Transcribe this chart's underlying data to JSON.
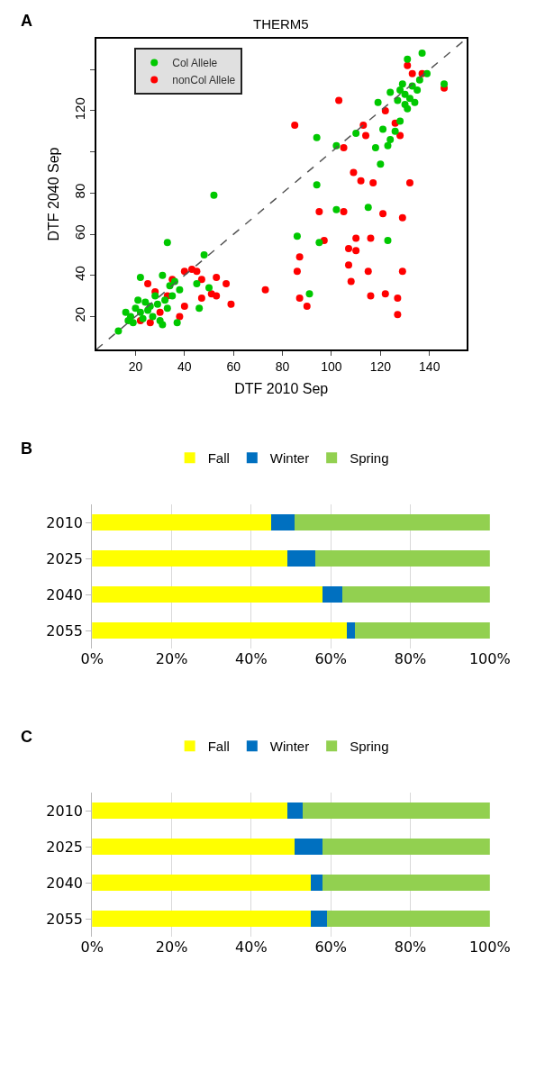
{
  "chart_data": [
    {
      "type": "scatter",
      "title": "THERM5",
      "xlabel": "DTF 2010 Sep",
      "ylabel": "DTF 2040 Sep",
      "annotations": [
        "A"
      ],
      "xlim": [
        4,
        155
      ],
      "ylim": [
        4,
        155
      ],
      "xticks": [
        20,
        40,
        60,
        80,
        100,
        120,
        140
      ],
      "yticks": [
        20,
        40,
        60,
        80,
        {
          "value": 100,
          "label": null
        },
        120,
        {
          "value": 140,
          "label": null
        }
      ],
      "grid": false,
      "legend": "top left",
      "marker": "circle",
      "series": [
        {
          "name": "nonCol Allele",
          "color": "#ff0000",
          "x": [
            85,
            40,
            43,
            45,
            53,
            57,
            59,
            53,
            51,
            40,
            25,
            47,
            47,
            73,
            86,
            87,
            87,
            90,
            103,
            113,
            114,
            105,
            109,
            112,
            117,
            132,
            95,
            105,
            121,
            129,
            97,
            110,
            116,
            107,
            110,
            107,
            115,
            129,
            108,
            116,
            122,
            127,
            127,
            131,
            133,
            137,
            null,
            122,
            126,
            null,
            128,
            146,
            null,
            22,
            28,
            30,
            35,
            38,
            33,
            26
          ],
          "values": [
            113,
            42,
            43,
            42,
            39,
            36,
            26,
            30,
            31,
            25,
            36,
            29,
            38,
            33,
            42,
            49,
            29,
            25,
            125,
            113,
            108,
            102,
            90,
            86,
            85,
            85,
            71,
            71,
            70,
            68,
            57,
            58,
            58,
            53,
            52,
            45,
            42,
            42,
            37,
            30,
            31,
            29,
            21,
            142,
            138,
            138,
            null,
            120,
            114,
            null,
            108,
            131,
            null,
            18,
            32,
            22,
            38,
            20,
            30,
            17
          ]
        },
        {
          "name": "Col Allele",
          "color": "#00c800",
          "x": [
            52,
            33,
            48,
            22,
            31,
            46,
            37,
            50,
            45,
            13,
            18,
            20,
            22,
            24,
            26,
            28,
            30,
            32,
            34,
            19,
            21,
            23,
            25,
            27,
            29,
            31,
            33,
            35,
            17,
            16,
            36,
            38,
            94,
            110,
            102,
            118,
            120,
            94,
            102,
            115,
            86,
            95,
            123,
            91,
            119,
            124,
            131,
            137,
            146,
            121,
            123,
            139,
            128,
            130,
            132,
            133,
            135,
            127,
            130,
            134,
            136,
            129,
            131,
            126,
            124,
            128
          ],
          "values": [
            79,
            56,
            50,
            39,
            40,
            24,
            17,
            34,
            36,
            13,
            20,
            24,
            22,
            27,
            25,
            30,
            18,
            28,
            35,
            17,
            28,
            19,
            23,
            20,
            26,
            16,
            24,
            30,
            18,
            22,
            37,
            33,
            107,
            109,
            103,
            102,
            94,
            84,
            72,
            73,
            59,
            56,
            57,
            31,
            124,
            129,
            145,
            148,
            133,
            111,
            103,
            138,
            130,
            128,
            126,
            132,
            130,
            125,
            123,
            124,
            135,
            133,
            121,
            110,
            106,
            115
          ]
        },
        {
          "type": "line",
          "color": "#555555",
          "line_style": "dashed",
          "marker": "none",
          "x": [
            4,
            155
          ],
          "values": [
            4,
            155
          ]
        }
      ]
    },
    {
      "type": "bar",
      "orientation": "horizontal",
      "stacked": true,
      "annotations": [
        "B"
      ],
      "categories": [
        "2010",
        "2025",
        "2040",
        "2055"
      ],
      "xlim": [
        0,
        100
      ],
      "xticks": [
        {
          "value": 0,
          "label": "0%"
        },
        {
          "value": 20,
          "label": "20%"
        },
        {
          "value": 40,
          "label": "40%"
        },
        {
          "value": 60,
          "label": "60%"
        },
        {
          "value": 80,
          "label": "80%"
        },
        {
          "value": 100,
          "label": "100%"
        }
      ],
      "grid": "x",
      "legend": "top",
      "series": [
        {
          "name": "Fall",
          "color": "#ffff00",
          "values": [
            45,
            49,
            58,
            64
          ]
        },
        {
          "name": "Winter",
          "color": "#0070c0",
          "values": [
            6,
            7,
            5,
            2
          ]
        },
        {
          "name": "Spring",
          "color": "#92d050",
          "values": [
            49,
            44,
            37,
            34
          ]
        }
      ]
    },
    {
      "type": "bar",
      "orientation": "horizontal",
      "stacked": true,
      "annotations": [
        "C"
      ],
      "categories": [
        "2010",
        "2025",
        "2040",
        "2055"
      ],
      "xlim": [
        0,
        100
      ],
      "xticks": [
        {
          "value": 0,
          "label": "0%"
        },
        {
          "value": 20,
          "label": "20%"
        },
        {
          "value": 40,
          "label": "40%"
        },
        {
          "value": 60,
          "label": "60%"
        },
        {
          "value": 80,
          "label": "80%"
        },
        {
          "value": 100,
          "label": "100%"
        }
      ],
      "grid": "x",
      "legend": "top",
      "series": [
        {
          "name": "Fall",
          "color": "#ffff00",
          "values": [
            49,
            51,
            55,
            55
          ]
        },
        {
          "name": "Winter",
          "color": "#0070c0",
          "values": [
            4,
            7,
            3,
            4
          ]
        },
        {
          "name": "Spring",
          "color": "#92d050",
          "values": [
            47,
            42,
            42,
            41
          ]
        }
      ]
    }
  ]
}
